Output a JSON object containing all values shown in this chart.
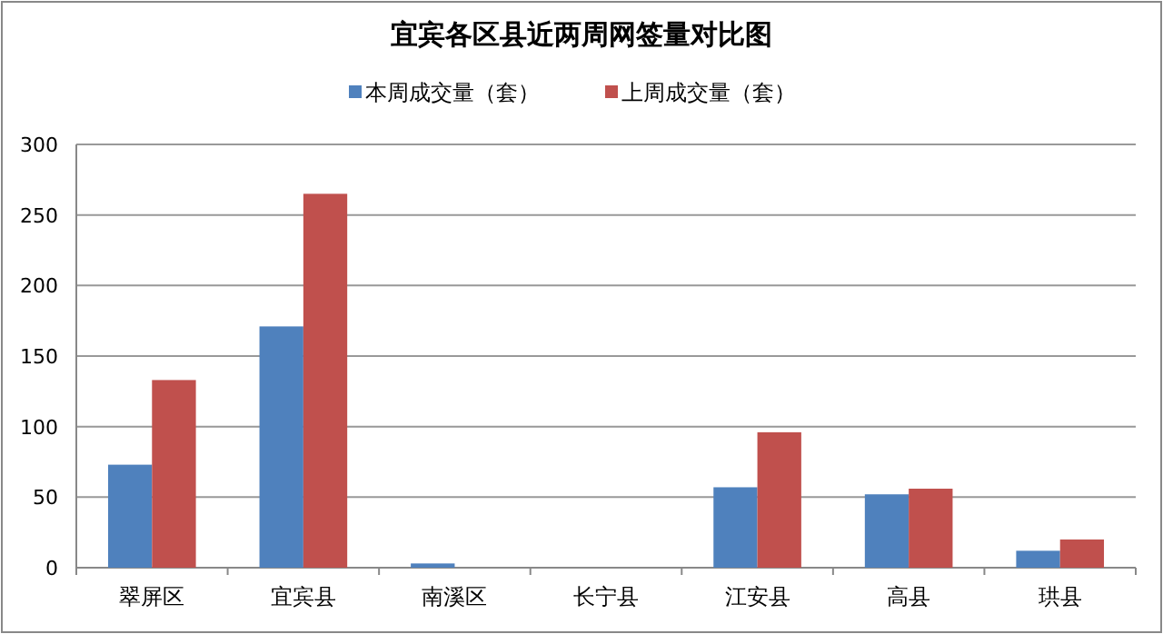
{
  "chart_data": {
    "type": "bar",
    "title": "宜宾各区县近两周网签量对比图",
    "categories": [
      "翠屏区",
      "宜宾县",
      "南溪区",
      "长宁县",
      "江安县",
      "高县",
      "珙县"
    ],
    "series": [
      {
        "name": "本周成交量（套）",
        "color": "#4f81bd",
        "values": [
          73,
          171,
          3,
          0,
          57,
          52,
          12
        ]
      },
      {
        "name": "上周成交量（套）",
        "color": "#c0504d",
        "values": [
          133,
          265,
          0,
          0,
          96,
          56,
          20
        ]
      }
    ],
    "ylim": [
      0,
      300
    ],
    "yticks": [
      0,
      50,
      100,
      150,
      200,
      250,
      300
    ],
    "grid": "y",
    "legend": "top"
  }
}
